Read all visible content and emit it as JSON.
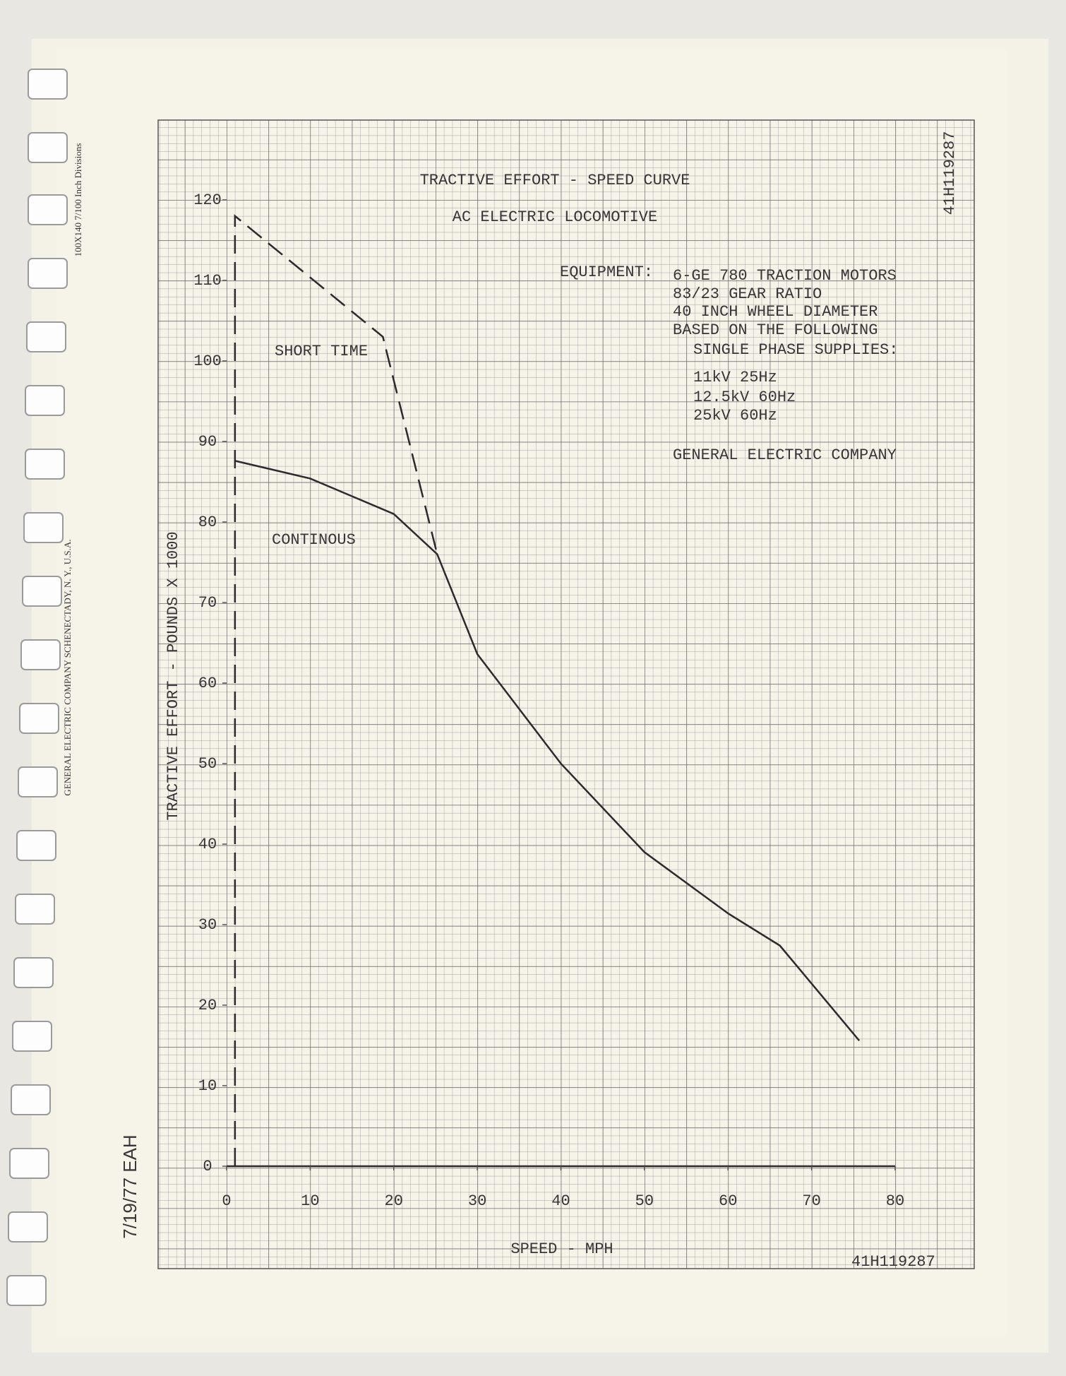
{
  "chart_data": {
    "type": "line",
    "title": "TRACTIVE EFFORT - SPEED CURVE",
    "subtitle": "AC ELECTRIC LOCOMOTIVE",
    "x_label": "SPEED - MPH",
    "y_label": "TRACTIVE EFFORT - POUNDS X 1000",
    "xlim": [
      0,
      80
    ],
    "ylim": [
      0,
      120
    ],
    "xticks": [
      0,
      10,
      20,
      30,
      40,
      50,
      60,
      70,
      80
    ],
    "yticks": [
      0,
      10,
      20,
      30,
      40,
      50,
      60,
      70,
      80,
      90,
      100,
      110,
      120
    ],
    "grid": true,
    "series": [
      {
        "name": "SHORT TIME",
        "color": "#2e2a2c",
        "line_style": "dashed",
        "x": [
          1,
          1,
          18.7,
          25.2
        ],
        "values": [
          0,
          118,
          103,
          76
        ]
      },
      {
        "name": "CONTINOUS",
        "color": "#2e2a2c",
        "line_style": "solid",
        "x": [
          1,
          10,
          20,
          25.2,
          30,
          40,
          50,
          60,
          66.2,
          75.7
        ],
        "values": [
          87.6,
          85.4,
          81,
          76,
          63.6,
          50,
          39,
          31.4,
          27.4,
          15.6
        ]
      }
    ],
    "equipment_heading": "EQUIPMENT:",
    "equipment_lines": [
      "6-GE 780 TRACTION MOTORS",
      "83/23 GEAR RATIO",
      "40 INCH WHEEL DIAMETER",
      "BASED ON THE FOLLOWING",
      "SINGLE PHASE SUPPLIES:",
      "11kV 25Hz",
      "12.5kV 60Hz",
      "25kV 60Hz"
    ],
    "company": "GENERAL ELECTRIC COMPANY",
    "drawing_number": "41H119287",
    "date_initials": "7/19/77 EAH",
    "paper_label": "100X140 7/100 Inch Divisions",
    "paper_maker": "GENERAL ELECTRIC COMPANY SCHENECTADY, N. Y., U.S.A."
  }
}
